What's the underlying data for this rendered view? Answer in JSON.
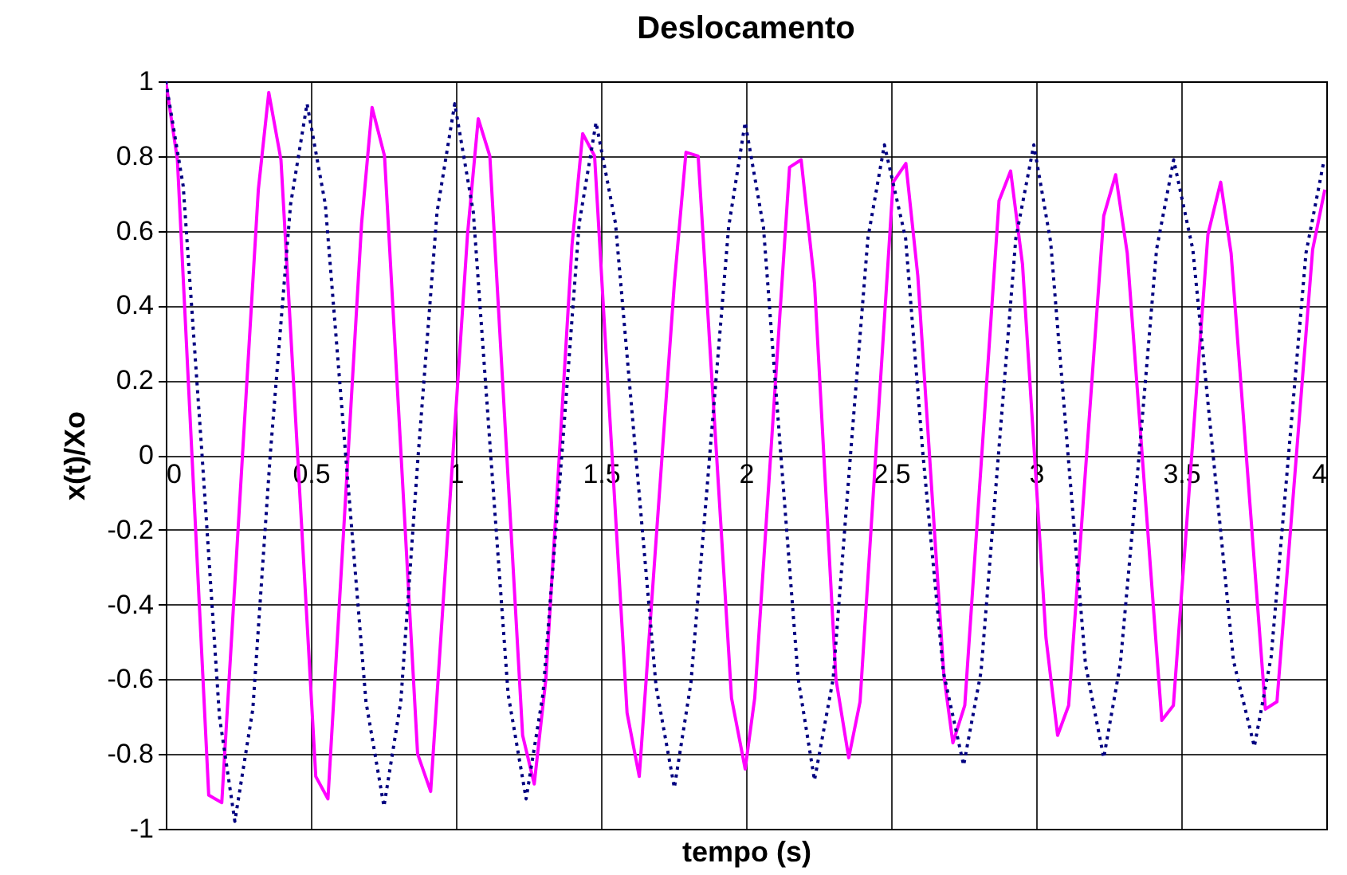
{
  "chart_data": {
    "type": "line",
    "title": "Deslocamento",
    "xlabel": "tempo (s)",
    "ylabel": "x(t)/Xo",
    "xlim": [
      0,
      4
    ],
    "xticks": [
      0,
      0.5,
      1,
      1.5,
      2,
      2.5,
      3,
      3.5,
      4
    ],
    "ylim": [
      -1,
      1
    ],
    "yticks": [
      -1,
      -0.8,
      -0.6,
      -0.4,
      -0.2,
      0,
      0.2,
      0.4,
      0.6,
      0.8,
      1
    ],
    "grid": true,
    "marker": "none",
    "series": [
      {
        "color": "#ff00ff",
        "line_style": "solid",
        "x": [
          0,
          0.04,
          0.148,
          0.193,
          0.319,
          0.355,
          0.397,
          0.517,
          0.559,
          0.675,
          0.711,
          0.754,
          0.868,
          0.913,
          1.04,
          1.077,
          1.117,
          1.23,
          1.27,
          1.31,
          1.4,
          1.437,
          1.478,
          1.59,
          1.632,
          1.753,
          1.793,
          1.835,
          1.95,
          1.997,
          2.03,
          2.15,
          2.19,
          2.236,
          2.31,
          2.354,
          2.393,
          2.507,
          2.551,
          2.592,
          2.682,
          2.713,
          2.754,
          2.872,
          2.912,
          2.953,
          3.034,
          3.074,
          3.112,
          3.233,
          3.274,
          3.314,
          3.433,
          3.473,
          3.592,
          3.636,
          3.672,
          3.79,
          3.83,
          3.953,
          3.995
        ],
        "values": [
          1,
          0.79,
          -0.91,
          -0.93,
          0.71,
          0.97,
          0.79,
          -0.86,
          -0.92,
          0.62,
          0.93,
          0.8,
          -0.8,
          -0.9,
          0.59,
          0.9,
          0.8,
          -0.75,
          -0.88,
          -0.6,
          0.56,
          0.86,
          0.8,
          -0.69,
          -0.86,
          0.46,
          0.81,
          0.8,
          -0.65,
          -0.84,
          -0.65,
          0.77,
          0.79,
          0.46,
          -0.6,
          -0.81,
          -0.66,
          0.73,
          0.78,
          0.48,
          -0.59,
          -0.77,
          -0.67,
          0.68,
          0.76,
          0.51,
          -0.49,
          -0.75,
          -0.67,
          0.64,
          0.75,
          0.54,
          -0.71,
          -0.67,
          0.59,
          0.73,
          0.54,
          -0.68,
          -0.66,
          0.55,
          0.71
        ]
      },
      {
        "color": "#000080",
        "line_style": "dotted",
        "x": [
          0,
          0.06,
          0.125,
          0.185,
          0.238,
          0.3,
          0.36,
          0.43,
          0.487,
          0.55,
          0.62,
          0.69,
          0.752,
          0.81,
          0.87,
          0.935,
          0.996,
          1.06,
          1.12,
          1.18,
          1.242,
          1.3,
          1.365,
          1.425,
          1.483,
          1.55,
          1.62,
          1.69,
          1.753,
          1.81,
          1.875,
          1.94,
          1.997,
          2.06,
          2.12,
          2.18,
          2.236,
          2.3,
          2.36,
          2.42,
          2.477,
          2.55,
          2.61,
          2.68,
          2.75,
          2.81,
          2.87,
          2.93,
          2.992,
          3.05,
          3.11,
          3.17,
          3.233,
          3.29,
          3.355,
          3.415,
          3.474,
          3.54,
          3.61,
          3.68,
          3.752,
          3.81,
          3.87,
          3.93,
          3.99
        ],
        "values": [
          1,
          0.72,
          0,
          -0.7,
          -0.98,
          -0.68,
          0,
          0.67,
          0.94,
          0.67,
          0,
          -0.66,
          -0.94,
          -0.66,
          0,
          0.65,
          0.94,
          0.65,
          0,
          -0.64,
          -0.92,
          -0.64,
          0,
          0.62,
          0.89,
          0.62,
          0,
          -0.62,
          -0.89,
          -0.61,
          0,
          0.61,
          0.89,
          0.61,
          0,
          -0.6,
          -0.87,
          -0.6,
          0,
          0.58,
          0.83,
          0.58,
          0,
          -0.58,
          -0.83,
          -0.58,
          0,
          0.58,
          0.83,
          0.57,
          0,
          -0.56,
          -0.81,
          -0.56,
          0,
          0.55,
          0.79,
          0.55,
          0,
          -0.55,
          -0.78,
          -0.54,
          0,
          0.54,
          0.78
        ]
      }
    ]
  }
}
